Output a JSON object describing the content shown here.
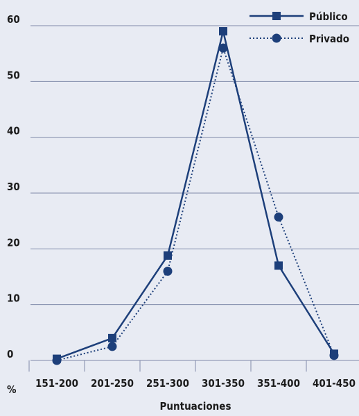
{
  "chart_data": {
    "type": "line",
    "categories": [
      "151-200",
      "201-250",
      "251-300",
      "301-350",
      "351-400",
      "401-450"
    ],
    "series": [
      {
        "name": "Público",
        "values": [
          0.3,
          4.0,
          18.8,
          59.0,
          17.0,
          1.2
        ],
        "marker": "square",
        "line_style": "solid"
      },
      {
        "name": "Privado",
        "values": [
          0.0,
          2.5,
          16.0,
          56.0,
          25.7,
          0.9
        ],
        "marker": "circle",
        "line_style": "dotted"
      }
    ],
    "y_ticks": [
      0,
      10,
      20,
      30,
      40,
      50,
      60
    ],
    "ylim": [
      0,
      60
    ],
    "xlabel": "Puntuaciones",
    "ylabel": "%",
    "grid": "horizontal",
    "legend_position": "top-right",
    "colors": {
      "background": "#e8ebf3",
      "series": "#1d3f7a",
      "grid": "#7f8aa8"
    }
  }
}
